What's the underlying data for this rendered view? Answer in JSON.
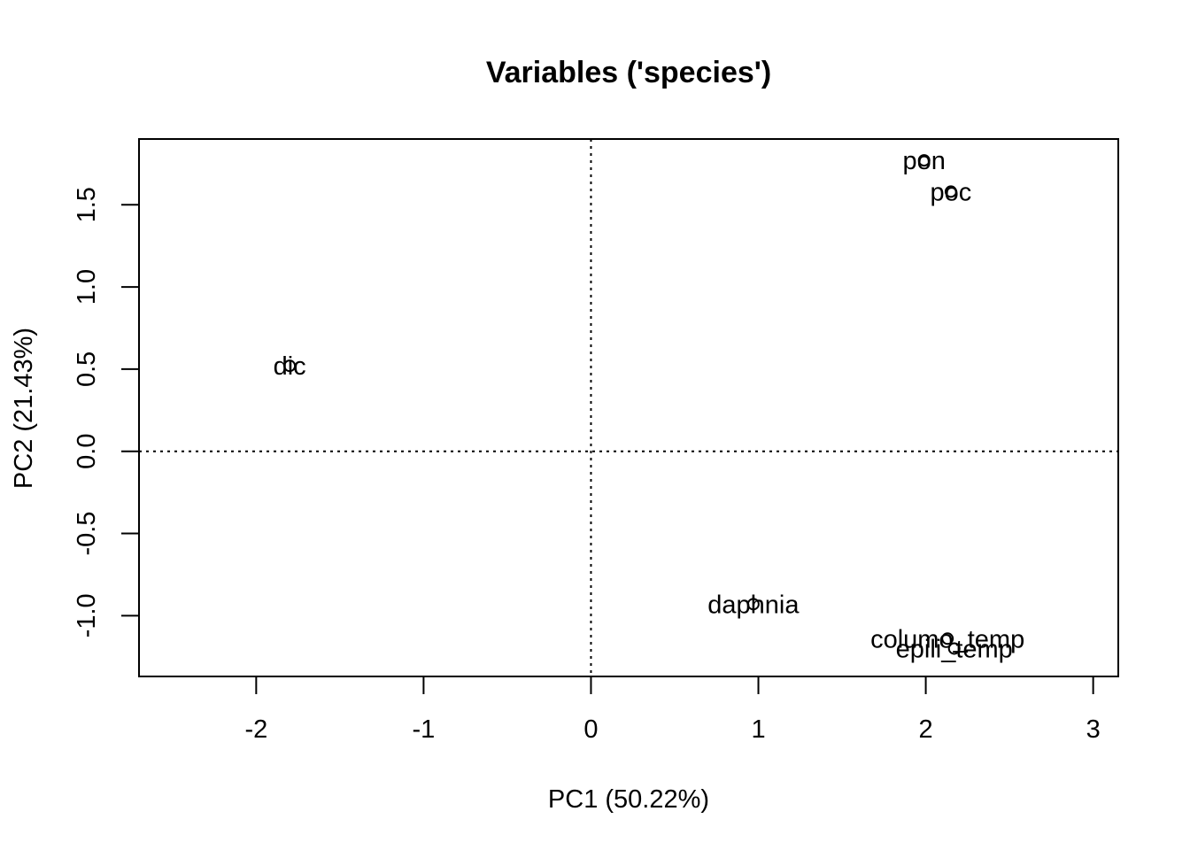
{
  "chart_data": {
    "type": "scatter",
    "title": "Variables ('species')",
    "xlabel": "PC1 (50.22%)",
    "ylabel": "PC2 (21.43%)",
    "xlim": [
      -2.7,
      3.15
    ],
    "ylim": [
      -1.37,
      1.9
    ],
    "x_ticks": [
      -2,
      -1,
      0,
      1,
      2,
      3
    ],
    "y_ticks": [
      -1.0,
      -0.5,
      0.0,
      0.5,
      1.0,
      1.5
    ],
    "x_tick_labels": [
      "-2",
      "-1",
      "0",
      "1",
      "2",
      "3"
    ],
    "y_tick_labels": [
      "-1.0",
      "-0.5",
      "0.0",
      "0.5",
      "1.0",
      "1.5"
    ],
    "reference_lines": {
      "x": 0,
      "y": 0
    },
    "grid": false,
    "points": [
      {
        "label": "pon",
        "x": 1.99,
        "y": 1.77
      },
      {
        "label": "poc",
        "x": 2.15,
        "y": 1.58
      },
      {
        "label": "dic",
        "x": -1.8,
        "y": 0.52
      },
      {
        "label": "daphnia",
        "x": 0.97,
        "y": -0.93
      },
      {
        "label": "columo_temp",
        "x": 2.13,
        "y": -1.14
      },
      {
        "label": "epili_temp",
        "x": 2.17,
        "y": -1.2
      }
    ]
  }
}
